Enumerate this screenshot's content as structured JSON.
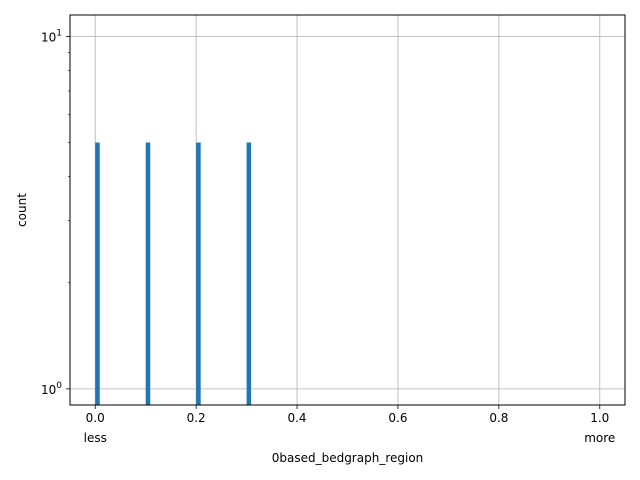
{
  "chart_data": {
    "type": "bar",
    "xlabel": "0based_bedgraph_region",
    "ylabel": "count",
    "xlim": [
      -0.05,
      1.05
    ],
    "ylim": [
      0.9,
      11.5
    ],
    "yscale": "log",
    "grid": true,
    "bar_width": 0.009,
    "bar_color": "#1f77b4",
    "x": [
      0.0,
      0.1,
      0.2,
      0.3
    ],
    "values": [
      5,
      5,
      5,
      5
    ],
    "x_ticks": [
      {
        "value": 0.0,
        "label": "0.0"
      },
      {
        "value": 0.2,
        "label": "0.2"
      },
      {
        "value": 0.4,
        "label": "0.4"
      },
      {
        "value": 0.6,
        "label": "0.6"
      },
      {
        "value": 0.8,
        "label": "0.8"
      },
      {
        "value": 1.0,
        "label": "1.0"
      }
    ],
    "x_edge_labels": [
      {
        "value": 0.0,
        "label": "less"
      },
      {
        "value": 1.0,
        "label": "more"
      }
    ],
    "y_major_ticks": [
      {
        "value": 1,
        "base": "10",
        "exp": "0"
      },
      {
        "value": 10,
        "base": "10",
        "exp": "1"
      }
    ],
    "y_minor_ticks": [
      2,
      3,
      4,
      5,
      6,
      7,
      8,
      9
    ]
  }
}
